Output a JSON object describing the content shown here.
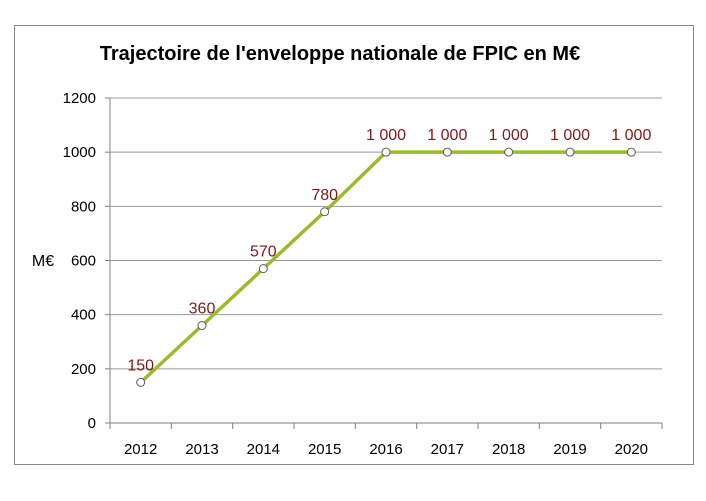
{
  "chart_data": {
    "type": "line",
    "title": "Trajectoire de l'enveloppe nationale de FPIC en M€",
    "xlabel": "",
    "ylabel": "M€",
    "categories": [
      "2012",
      "2013",
      "2014",
      "2015",
      "2016",
      "2017",
      "2018",
      "2019",
      "2020"
    ],
    "series": [
      {
        "values": [
          150,
          360,
          570,
          780,
          1000,
          1000,
          1000,
          1000,
          1000
        ],
        "labels": [
          "150",
          "360",
          "570",
          "780",
          "1 000",
          "1 000",
          "1 000",
          "1 000",
          "1 000"
        ],
        "color": "#9bbb2e"
      }
    ],
    "ylim": [
      0,
      1200
    ],
    "yticks": [
      0,
      200,
      400,
      600,
      800,
      1000,
      1200
    ],
    "grid": true,
    "legend": "none",
    "colors": {
      "label": "#7a1a1a",
      "grid": "#9a9a9a",
      "marker_fill": "#ffffff",
      "marker_stroke": "#5a5a5a"
    }
  }
}
